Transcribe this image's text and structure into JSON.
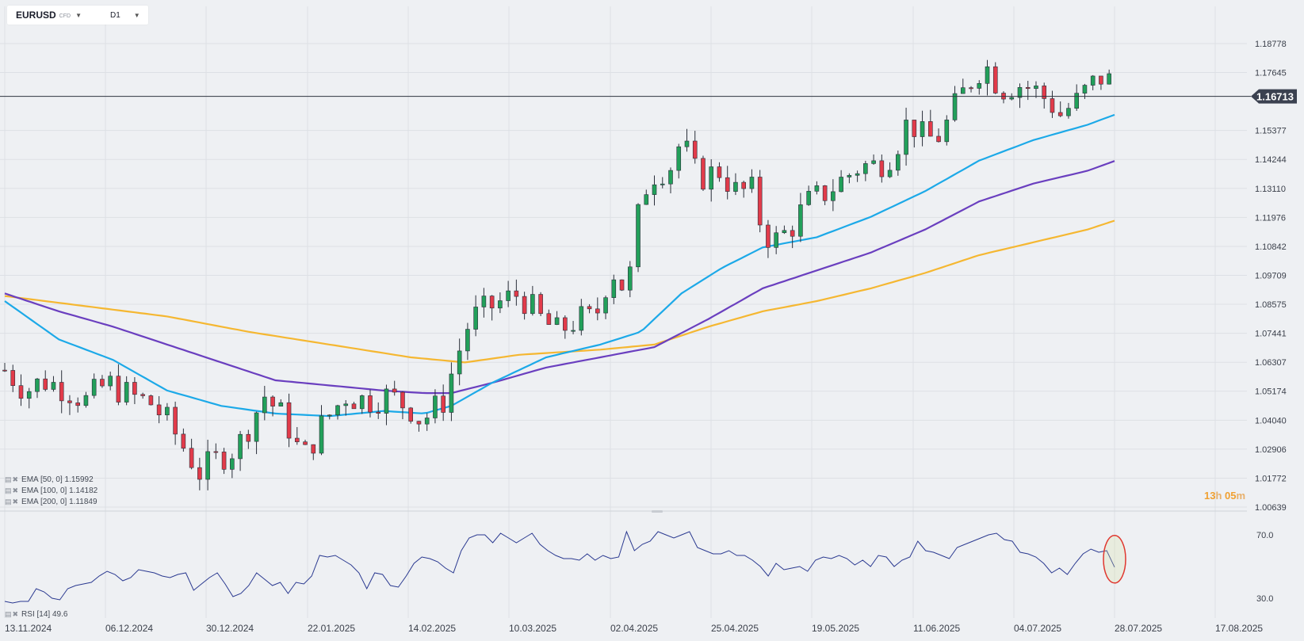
{
  "header": {
    "symbol": "EURUSD",
    "symbol_suffix": "CFD",
    "timeframe": "D1"
  },
  "indicators": [
    {
      "label": "EMA [50, 0]",
      "value": "1.15992",
      "color": "#1ca9e8"
    },
    {
      "label": "EMA [100, 0]",
      "value": "1.14182",
      "color": "#6a3fbf"
    },
    {
      "label": "EMA [200, 0]",
      "value": "1.11849",
      "color": "#f5b731"
    }
  ],
  "rsi_legend": {
    "label": "RSI [14]",
    "value": "49.6",
    "color": "#2a3990"
  },
  "countdown": {
    "hours": "13",
    "h_unit": "h",
    "minutes": "05",
    "m_unit": "m"
  },
  "chart_data": {
    "type": "candlestick",
    "price_axis_ticks": [
      1.18778,
      1.17645,
      1.15377,
      1.14244,
      1.1311,
      1.11976,
      1.10842,
      1.09709,
      1.08575,
      1.07441,
      1.06307,
      1.05174,
      1.0404,
      1.02906,
      1.01772,
      1.00639
    ],
    "price_tick_labels": [
      "1.18778",
      "1.17645",
      "1.15377",
      "1.14244",
      "1.13110",
      "1.11976",
      "1.10842",
      "1.09709",
      "1.08575",
      "1.07441",
      "1.06307",
      "1.05174",
      "1.04040",
      "1.02906",
      "1.01772",
      "1.00639"
    ],
    "ylim": [
      1.00639,
      1.18778
    ],
    "current_price": 1.16713,
    "current_price_label": "1.16713",
    "date_labels": [
      "13.11.2024",
      "06.12.2024",
      "30.12.2024",
      "22.01.2025",
      "14.02.2025",
      "10.03.2025",
      "02.04.2025",
      "25.04.2025",
      "19.05.2025",
      "11.06.2025",
      "04.07.2025",
      "28.07.2025",
      "17.08.2025"
    ],
    "anchors": [
      [
        0,
        1.06
      ],
      [
        8,
        1.052
      ],
      [
        14,
        1.056
      ],
      [
        22,
        1.053
      ],
      [
        30,
        1.048
      ],
      [
        38,
        1.055
      ],
      [
        46,
        1.05
      ],
      [
        54,
        1.047
      ],
      [
        60,
        1.04
      ],
      [
        66,
        1.03
      ],
      [
        72,
        1.02
      ],
      [
        78,
        1.025
      ],
      [
        86,
        1.03
      ],
      [
        96,
        1.05
      ],
      [
        104,
        1.04
      ],
      [
        110,
        1.025
      ],
      [
        118,
        1.04
      ],
      [
        126,
        1.05
      ],
      [
        134,
        1.048
      ],
      [
        142,
        1.05
      ],
      [
        150,
        1.045
      ],
      [
        154,
        1.04
      ],
      [
        162,
        1.048
      ],
      [
        166,
        1.062
      ],
      [
        172,
        1.08
      ],
      [
        180,
        1.085
      ],
      [
        190,
        1.09
      ],
      [
        198,
        1.08
      ],
      [
        204,
        1.075
      ],
      [
        212,
        1.08
      ],
      [
        218,
        1.08
      ],
      [
        224,
        1.1
      ],
      [
        230,
        1.09
      ],
      [
        234,
        1.12
      ],
      [
        238,
        1.136
      ],
      [
        246,
        1.14
      ],
      [
        250,
        1.15
      ],
      [
        256,
        1.135
      ],
      [
        264,
        1.138
      ],
      [
        270,
        1.13
      ],
      [
        276,
        1.13
      ],
      [
        280,
        1.115
      ],
      [
        284,
        1.11
      ],
      [
        290,
        1.115
      ],
      [
        296,
        1.125
      ],
      [
        304,
        1.13
      ],
      [
        310,
        1.135
      ],
      [
        316,
        1.14
      ],
      [
        322,
        1.14
      ],
      [
        328,
        1.145
      ],
      [
        334,
        1.158
      ],
      [
        340,
        1.15
      ],
      [
        346,
        1.152
      ],
      [
        352,
        1.165
      ],
      [
        358,
        1.175
      ],
      [
        362,
        1.18
      ],
      [
        368,
        1.17
      ],
      [
        374,
        1.172
      ],
      [
        380,
        1.17
      ],
      [
        386,
        1.165
      ],
      [
        390,
        1.16
      ],
      [
        396,
        1.165
      ],
      [
        400,
        1.17
      ],
      [
        404,
        1.174
      ],
      [
        408,
        1.176
      ],
      [
        410,
        1.1671
      ]
    ],
    "ema_50": [
      [
        0,
        1.087
      ],
      [
        20,
        1.072
      ],
      [
        40,
        1.064
      ],
      [
        60,
        1.052
      ],
      [
        80,
        1.046
      ],
      [
        100,
        1.043
      ],
      [
        120,
        1.042
      ],
      [
        140,
        1.044
      ],
      [
        155,
        1.043
      ],
      [
        165,
        1.046
      ],
      [
        180,
        1.055
      ],
      [
        200,
        1.065
      ],
      [
        220,
        1.07
      ],
      [
        235,
        1.075
      ],
      [
        250,
        1.09
      ],
      [
        265,
        1.1
      ],
      [
        280,
        1.108
      ],
      [
        300,
        1.112
      ],
      [
        320,
        1.12
      ],
      [
        340,
        1.13
      ],
      [
        360,
        1.142
      ],
      [
        380,
        1.15
      ],
      [
        400,
        1.156
      ],
      [
        410,
        1.15992
      ]
    ],
    "ema_100": [
      [
        0,
        1.09
      ],
      [
        20,
        1.083
      ],
      [
        40,
        1.077
      ],
      [
        60,
        1.07
      ],
      [
        80,
        1.063
      ],
      [
        100,
        1.056
      ],
      [
        120,
        1.054
      ],
      [
        140,
        1.052
      ],
      [
        155,
        1.051
      ],
      [
        165,
        1.051
      ],
      [
        180,
        1.055
      ],
      [
        200,
        1.061
      ],
      [
        220,
        1.065
      ],
      [
        240,
        1.069
      ],
      [
        260,
        1.08
      ],
      [
        280,
        1.092
      ],
      [
        300,
        1.099
      ],
      [
        320,
        1.106
      ],
      [
        340,
        1.115
      ],
      [
        360,
        1.126
      ],
      [
        380,
        1.133
      ],
      [
        400,
        1.138
      ],
      [
        410,
        1.14182
      ]
    ],
    "ema_200": [
      [
        0,
        1.089
      ],
      [
        30,
        1.085
      ],
      [
        60,
        1.081
      ],
      [
        90,
        1.075
      ],
      [
        120,
        1.07
      ],
      [
        150,
        1.065
      ],
      [
        170,
        1.063
      ],
      [
        190,
        1.066
      ],
      [
        220,
        1.068
      ],
      [
        240,
        1.07
      ],
      [
        260,
        1.077
      ],
      [
        280,
        1.083
      ],
      [
        300,
        1.087
      ],
      [
        320,
        1.092
      ],
      [
        340,
        1.098
      ],
      [
        360,
        1.105
      ],
      [
        380,
        1.11
      ],
      [
        400,
        1.115
      ],
      [
        410,
        1.11849
      ]
    ],
    "rsi": {
      "ylim": [
        20,
        80
      ],
      "ticks": [
        70.0,
        30.0
      ],
      "tick_labels": [
        "70.0",
        "30.0"
      ],
      "values": [
        28,
        27,
        28,
        28,
        36,
        34,
        30,
        29,
        36,
        38,
        39,
        40,
        44,
        47,
        45,
        41,
        43,
        48,
        47,
        46,
        44,
        43,
        45,
        46,
        35,
        39,
        43,
        46,
        39,
        31,
        33,
        38,
        46,
        42,
        38,
        40,
        33,
        40,
        39,
        44,
        57,
        56,
        57,
        54,
        51,
        46,
        36,
        46,
        45,
        38,
        37,
        44,
        52,
        56,
        55,
        53,
        49,
        46,
        60,
        68,
        70,
        70,
        65,
        71,
        68,
        65,
        68,
        71,
        64,
        60,
        57,
        55,
        55,
        54,
        58,
        54,
        57,
        55,
        56,
        72,
        60,
        64,
        66,
        72,
        70,
        68,
        70,
        72,
        62,
        60,
        58,
        58,
        60,
        57,
        57,
        54,
        50,
        44,
        52,
        48,
        49,
        50,
        47,
        54,
        56,
        55,
        57,
        55,
        51,
        54,
        50,
        57,
        56,
        50,
        54,
        56,
        66,
        60,
        59,
        57,
        55,
        62,
        64,
        66,
        68,
        70,
        71,
        67,
        66,
        59,
        58,
        56,
        52,
        46,
        49,
        45,
        52,
        58,
        61,
        59,
        60,
        49.6
      ],
      "last_label": "49.6"
    }
  }
}
